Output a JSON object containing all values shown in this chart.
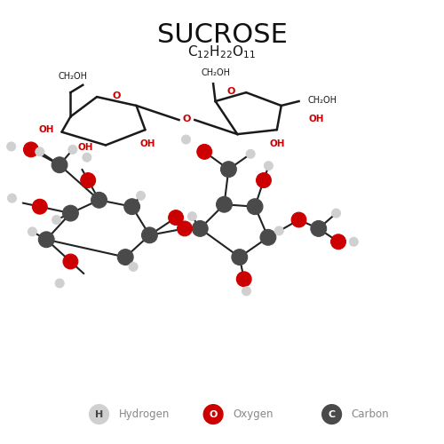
{
  "title": "SUCROSE",
  "formula": "C$_{12}$H$_{22}$O$_{11}$",
  "bg_color": "#ffffff",
  "skeletal_color": "#1a1a1a",
  "oh_color": "#cc0000",
  "ring_o_color": "#cc0000",
  "carbon_color": "#444444",
  "oxygen_color": "#cc0000",
  "hydrogen_color": "#cccccc",
  "legend_items": [
    {
      "label": "Hydrogen",
      "color": "#cccccc",
      "letter": "H"
    },
    {
      "label": "Oxygen",
      "color": "#cc0000",
      "letter": "O"
    },
    {
      "label": "Carbon",
      "color": "#555555",
      "letter": "C"
    }
  ]
}
